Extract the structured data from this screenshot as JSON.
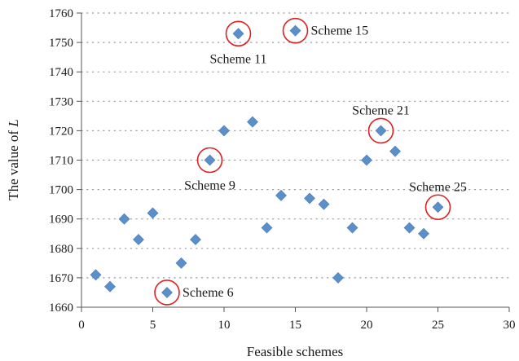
{
  "chart_data": {
    "type": "scatter",
    "title": "",
    "xlabel": "Feasible schemes",
    "ylabel_prefix": "The value of ",
    "ylabel_symbol": "L",
    "xlim": [
      0,
      30
    ],
    "ylim": [
      1660,
      1760
    ],
    "x_ticks": [
      0,
      5,
      10,
      15,
      20,
      25,
      30
    ],
    "y_ticks": [
      1660,
      1670,
      1680,
      1690,
      1700,
      1710,
      1720,
      1730,
      1740,
      1750,
      1760
    ],
    "x_tick_labels": [
      "0",
      "5",
      "10",
      "15",
      "20",
      "25",
      "30"
    ],
    "y_tick_labels": [
      "1660",
      "1670",
      "1680",
      "1690",
      "1700",
      "1710",
      "1720",
      "1730",
      "1740",
      "1750",
      "1760"
    ],
    "grid": "horizontal dotted",
    "legend": "none",
    "marker": "diamond",
    "marker_color": "#5b8fc9",
    "highlight_color": "#e02020",
    "points": [
      {
        "x": 1,
        "y": 1671
      },
      {
        "x": 2,
        "y": 1667
      },
      {
        "x": 3,
        "y": 1690
      },
      {
        "x": 4,
        "y": 1683
      },
      {
        "x": 5,
        "y": 1692
      },
      {
        "x": 6,
        "y": 1665
      },
      {
        "x": 7,
        "y": 1675
      },
      {
        "x": 8,
        "y": 1683
      },
      {
        "x": 9,
        "y": 1710
      },
      {
        "x": 10,
        "y": 1720
      },
      {
        "x": 11,
        "y": 1753
      },
      {
        "x": 12,
        "y": 1723
      },
      {
        "x": 13,
        "y": 1687
      },
      {
        "x": 14,
        "y": 1698
      },
      {
        "x": 15,
        "y": 1754
      },
      {
        "x": 16,
        "y": 1697
      },
      {
        "x": 17,
        "y": 1695
      },
      {
        "x": 18,
        "y": 1670
      },
      {
        "x": 19,
        "y": 1687
      },
      {
        "x": 20,
        "y": 1710
      },
      {
        "x": 21,
        "y": 1720
      },
      {
        "x": 22,
        "y": 1713
      },
      {
        "x": 23,
        "y": 1687
      },
      {
        "x": 24,
        "y": 1685
      },
      {
        "x": 25,
        "y": 1694
      }
    ],
    "annotations": [
      {
        "label": "Scheme 6",
        "x": 6,
        "y": 1665,
        "position": "right"
      },
      {
        "label": "Scheme 9",
        "x": 9,
        "y": 1710,
        "position": "below"
      },
      {
        "label": "Scheme 11",
        "x": 11,
        "y": 1753,
        "position": "below"
      },
      {
        "label": "Scheme 15",
        "x": 15,
        "y": 1754,
        "position": "right"
      },
      {
        "label": "Scheme 21",
        "x": 21,
        "y": 1720,
        "position": "above"
      },
      {
        "label": "Scheme 25",
        "x": 25,
        "y": 1694,
        "position": "above"
      }
    ]
  }
}
